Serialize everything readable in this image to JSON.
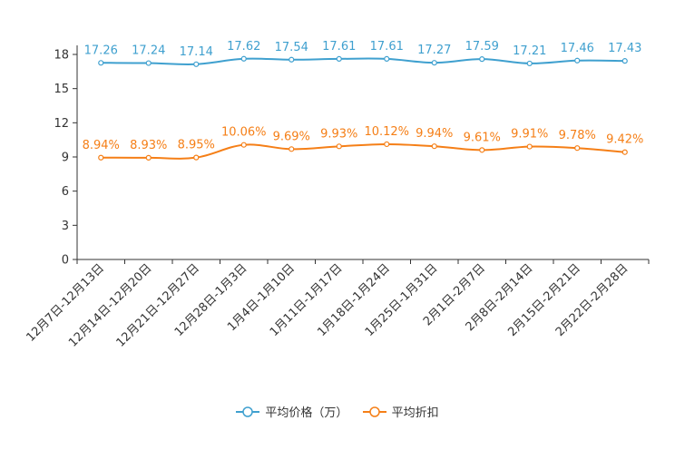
{
  "chart_data": {
    "type": "line",
    "categories": [
      "12月7日-12月13日",
      "12月14日-12月20日",
      "12月21日-12月27日",
      "12月28日-1月3日",
      "1月4日-1月10日",
      "1月11日-1月17日",
      "1月18日-1月24日",
      "1月25日-1月31日",
      "2月1日-2月7日",
      "2月8日-2月14日",
      "2月15日-2月21日",
      "2月22日-2月28日"
    ],
    "series": [
      {
        "name": "平均价格（万）",
        "color": "#3fa0cf",
        "values": [
          17.26,
          17.24,
          17.14,
          17.62,
          17.54,
          17.61,
          17.61,
          17.27,
          17.59,
          17.21,
          17.46,
          17.43
        ],
        "labels": [
          "17.26",
          "17.24",
          "17.14",
          "17.62",
          "17.54",
          "17.61",
          "17.61",
          "17.27",
          "17.59",
          "17.21",
          "17.46",
          "17.43"
        ]
      },
      {
        "name": "平均折扣",
        "color": "#f57f17",
        "values": [
          8.94,
          8.93,
          8.95,
          10.06,
          9.69,
          9.93,
          10.12,
          9.94,
          9.61,
          9.91,
          9.78,
          9.42
        ],
        "labels": [
          "8.94%",
          "8.93%",
          "8.95%",
          "10.06%",
          "9.69%",
          "9.93%",
          "10.12%",
          "9.94%",
          "9.61%",
          "9.91%",
          "9.78%",
          "9.42%"
        ]
      }
    ],
    "y_ticks": [
      "0",
      "3",
      "6",
      "9",
      "12",
      "15",
      "18"
    ],
    "ylim": [
      0,
      18
    ],
    "legend_position": "bottom-center"
  }
}
